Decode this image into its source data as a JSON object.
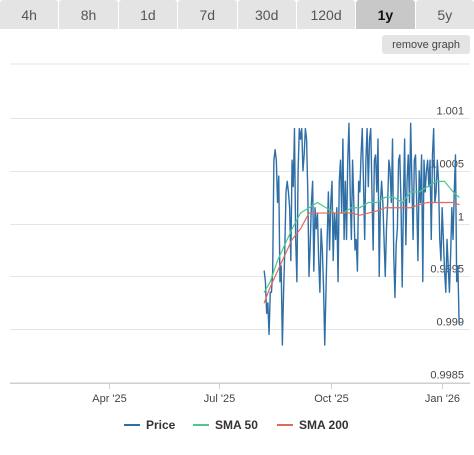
{
  "tabs": [
    {
      "label": "4h",
      "active": false
    },
    {
      "label": "8h",
      "active": false
    },
    {
      "label": "1d",
      "active": false
    },
    {
      "label": "7d",
      "active": false
    },
    {
      "label": "30d",
      "active": false
    },
    {
      "label": "120d",
      "active": false
    },
    {
      "label": "1y",
      "active": true
    },
    {
      "label": "5y",
      "active": false
    }
  ],
  "remove_graph_label": "remove graph",
  "chart_data": {
    "type": "line",
    "ylim": [
      0.9985,
      1.001
    ],
    "y_ticks": [
      {
        "value": 1.001,
        "label": "1.001"
      },
      {
        "value": 1.0005,
        "label": "1.0005"
      },
      {
        "value": 1.0,
        "label": "1"
      },
      {
        "value": 0.9995,
        "label": "0.9995"
      },
      {
        "value": 0.999,
        "label": "0.999"
      },
      {
        "value": 0.9985,
        "label": "0.9985"
      }
    ],
    "x_range": [
      "2025-01-09",
      "2026-01-24"
    ],
    "x_ticks": [
      {
        "date": "2025-04-01",
        "label": "Apr '25"
      },
      {
        "date": "2025-07-01",
        "label": "Jul '25"
      },
      {
        "date": "2025-10-01",
        "label": "Oct '25"
      },
      {
        "date": "2026-01-01",
        "label": "Jan '26"
      }
    ],
    "grid": true,
    "legend_position": "bottom",
    "series": [
      {
        "name": "Price",
        "color": "#2f6fa6",
        "points": [
          [
            "2025-08-07",
            0.99955
          ],
          [
            "2025-08-08",
            0.99945
          ],
          [
            "2025-08-09",
            0.99915
          ],
          [
            "2025-08-10",
            0.99925
          ],
          [
            "2025-08-11",
            0.99895
          ],
          [
            "2025-08-12",
            0.99935
          ],
          [
            "2025-08-13",
            0.99935
          ],
          [
            "2025-08-14",
            0.99955
          ],
          [
            "2025-08-15",
            1.0006
          ],
          [
            "2025-08-16",
            1.0007
          ],
          [
            "2025-08-17",
            1.0006
          ],
          [
            "2025-08-18",
            1.0002
          ],
          [
            "2025-08-19",
            1.00045
          ],
          [
            "2025-08-20",
            0.99945
          ],
          [
            "2025-08-21",
            0.9996
          ],
          [
            "2025-08-22",
            0.99885
          ],
          [
            "2025-08-23",
            0.99935
          ],
          [
            "2025-08-24",
            0.99975
          ],
          [
            "2025-08-25",
            1.0003
          ],
          [
            "2025-08-26",
            1.0004
          ],
          [
            "2025-08-27",
            1.0003
          ],
          [
            "2025-08-28",
            1.00015
          ],
          [
            "2025-08-29",
            0.99965
          ],
          [
            "2025-08-30",
            1.0006
          ],
          [
            "2025-08-31",
            1.00035
          ],
          [
            "2025-09-01",
            1.0009
          ],
          [
            "2025-09-02",
            0.99985
          ],
          [
            "2025-09-03",
            0.99945
          ],
          [
            "2025-09-04",
            1.0005
          ],
          [
            "2025-09-05",
            1.0009
          ],
          [
            "2025-09-06",
            1.0008
          ],
          [
            "2025-09-07",
            1.0009
          ],
          [
            "2025-09-08",
            1.0005
          ],
          [
            "2025-09-09",
            1.00065
          ],
          [
            "2025-09-10",
            1.0009
          ],
          [
            "2025-09-11",
            1.0008
          ],
          [
            "2025-09-12",
            1.0003
          ],
          [
            "2025-09-13",
            0.9995
          ],
          [
            "2025-09-14",
            0.9998
          ],
          [
            "2025-09-15",
            1.0002
          ],
          [
            "2025-09-16",
            1.0004
          ],
          [
            "2025-09-17",
            0.99955
          ],
          [
            "2025-09-18",
            1.00015
          ],
          [
            "2025-09-19",
            0.99995
          ],
          [
            "2025-09-20",
            1.0001
          ],
          [
            "2025-09-21",
            0.99965
          ],
          [
            "2025-09-22",
            0.99935
          ],
          [
            "2025-09-23",
            0.99995
          ],
          [
            "2025-09-24",
            0.99975
          ],
          [
            "2025-09-25",
            0.9994
          ],
          [
            "2025-09-26",
            0.99885
          ],
          [
            "2025-09-27",
            0.99935
          ],
          [
            "2025-09-28",
            0.99985
          ],
          [
            "2025-09-29",
            1.0003
          ],
          [
            "2025-09-30",
            0.99975
          ],
          [
            "2025-10-01",
            1.0002
          ],
          [
            "2025-10-02",
            1.0004
          ],
          [
            "2025-10-03",
            0.99965
          ],
          [
            "2025-10-04",
            1.0001
          ],
          [
            "2025-10-05",
            0.99985
          ],
          [
            "2025-10-06",
            1.00015
          ],
          [
            "2025-10-07",
            0.99945
          ],
          [
            "2025-10-08",
            1.0004
          ],
          [
            "2025-10-09",
            1.0006
          ],
          [
            "2025-10-10",
            1.0001
          ],
          [
            "2025-10-11",
            1.0008
          ],
          [
            "2025-10-12",
            0.99985
          ],
          [
            "2025-10-13",
            1.0004
          ],
          [
            "2025-10-14",
            0.99985
          ],
          [
            "2025-10-15",
            1.0006
          ],
          [
            "2025-10-16",
            1.00095
          ],
          [
            "2025-10-17",
            1.0003
          ],
          [
            "2025-10-18",
            0.99985
          ],
          [
            "2025-10-19",
            1.0006
          ],
          [
            "2025-10-20",
            1.0002
          ],
          [
            "2025-10-21",
            0.99975
          ],
          [
            "2025-10-22",
            0.99985
          ],
          [
            "2025-10-23",
            0.99955
          ],
          [
            "2025-10-24",
            1.0004
          ],
          [
            "2025-10-25",
            1.0003
          ],
          [
            "2025-10-26",
            1.00065
          ],
          [
            "2025-10-27",
            1.0009
          ],
          [
            "2025-10-28",
            1.0004
          ],
          [
            "2025-10-29",
            0.99985
          ],
          [
            "2025-10-30",
            1.0006
          ],
          [
            "2025-10-31",
            1.0009
          ],
          [
            "2025-11-01",
            1.00035
          ],
          [
            "2025-11-02",
            1.0008
          ],
          [
            "2025-11-03",
            1.0009
          ],
          [
            "2025-11-04",
            1.0003
          ],
          [
            "2025-11-05",
            0.99975
          ],
          [
            "2025-11-06",
            1.0006
          ],
          [
            "2025-11-07",
            1.00065
          ],
          [
            "2025-11-08",
            1.0003
          ],
          [
            "2025-11-09",
            1.0008
          ],
          [
            "2025-11-10",
            0.9995
          ],
          [
            "2025-11-11",
            1.0002
          ],
          [
            "2025-11-12",
            1.0004
          ],
          [
            "2025-11-13",
            1.0002
          ],
          [
            "2025-11-14",
            0.99985
          ],
          [
            "2025-11-15",
            0.9995
          ],
          [
            "2025-11-16",
            0.99995
          ],
          [
            "2025-11-17",
            1.0002
          ],
          [
            "2025-11-18",
            1.0006
          ],
          [
            "2025-11-19",
            1.0005
          ],
          [
            "2025-11-20",
            1.0002
          ],
          [
            "2025-11-21",
            1.0008
          ],
          [
            "2025-11-22",
            0.9997
          ],
          [
            "2025-11-23",
            0.9993
          ],
          [
            "2025-11-24",
            0.9998
          ],
          [
            "2025-11-25",
            0.99995
          ],
          [
            "2025-11-26",
            1.0006
          ],
          [
            "2025-11-27",
            1.00065
          ],
          [
            "2025-11-28",
            1.0002
          ],
          [
            "2025-11-29",
            0.9994
          ],
          [
            "2025-11-30",
            1.0002
          ],
          [
            "2025-12-01",
            1.0008
          ],
          [
            "2025-12-02",
            0.9998
          ],
          [
            "2025-12-03",
            1.0004
          ],
          [
            "2025-12-04",
            1.00065
          ],
          [
            "2025-12-05",
            1.0002
          ],
          [
            "2025-12-06",
            1.00095
          ],
          [
            "2025-12-07",
            1.0004
          ],
          [
            "2025-12-08",
            0.99985
          ],
          [
            "2025-12-09",
            1.0006
          ],
          [
            "2025-12-10",
            1.00065
          ],
          [
            "2025-12-11",
            1.0002
          ],
          [
            "2025-12-12",
            0.99965
          ],
          [
            "2025-12-13",
            1.0005
          ],
          [
            "2025-12-14",
            1.0002
          ],
          [
            "2025-12-15",
            1.00065
          ],
          [
            "2025-12-16",
            0.99945
          ],
          [
            "2025-12-17",
            1.0006
          ],
          [
            "2025-12-18",
            1.0003
          ],
          [
            "2025-12-19",
            1.0005
          ],
          [
            "2025-12-20",
            1.0006
          ],
          [
            "2025-12-21",
            1.00035
          ],
          [
            "2025-12-22",
            1.0006
          ],
          [
            "2025-12-23",
            0.99985
          ],
          [
            "2025-12-24",
            1.00065
          ],
          [
            "2025-12-25",
            1.0009
          ],
          [
            "2025-12-26",
            1.0002
          ],
          [
            "2025-12-27",
            1.0003
          ],
          [
            "2025-12-28",
            1.0006
          ],
          [
            "2025-12-29",
            1.0004
          ],
          [
            "2025-12-30",
            0.99985
          ],
          [
            "2025-12-31",
            0.99965
          ],
          [
            "2026-01-01",
            1.00015
          ],
          [
            "2026-01-02",
            0.99985
          ],
          [
            "2026-01-03",
            0.99955
          ],
          [
            "2026-01-04",
            0.99935
          ],
          [
            "2026-01-05",
            0.99985
          ],
          [
            "2026-01-06",
            0.9996
          ],
          [
            "2026-01-07",
            0.99935
          ],
          [
            "2026-01-08",
            0.9997
          ],
          [
            "2026-01-09",
            1.00015
          ],
          [
            "2026-01-10",
            0.99985
          ],
          [
            "2026-01-11",
            1.0003
          ],
          [
            "2026-01-12",
            1.00065
          ],
          [
            "2026-01-13",
            0.99945
          ],
          [
            "2026-01-14",
            0.9996
          ],
          [
            "2026-01-15",
            0.99905
          ]
        ]
      },
      {
        "name": "SMA 50",
        "color": "#4cc98a",
        "points": [
          [
            "2025-08-07",
            0.99935
          ],
          [
            "2025-08-12",
            0.99945
          ],
          [
            "2025-08-18",
            0.99965
          ],
          [
            "2025-08-24",
            0.9998
          ],
          [
            "2025-08-30",
            0.99995
          ],
          [
            "2025-09-06",
            1.0001
          ],
          [
            "2025-09-13",
            1.00015
          ],
          [
            "2025-09-20",
            1.0002
          ],
          [
            "2025-09-27",
            1.00015
          ],
          [
            "2025-10-04",
            1.0001
          ],
          [
            "2025-10-11",
            1.0001
          ],
          [
            "2025-10-18",
            1.00015
          ],
          [
            "2025-10-25",
            1.00015
          ],
          [
            "2025-11-01",
            1.0002
          ],
          [
            "2025-11-08",
            1.0002
          ],
          [
            "2025-11-15",
            1.00025
          ],
          [
            "2025-11-22",
            1.00025
          ],
          [
            "2025-11-29",
            1.0002
          ],
          [
            "2025-12-06",
            1.0003
          ],
          [
            "2025-12-13",
            1.0003
          ],
          [
            "2025-12-20",
            1.00035
          ],
          [
            "2025-12-27",
            1.0004
          ],
          [
            "2026-01-03",
            1.0004
          ],
          [
            "2026-01-10",
            1.0003
          ],
          [
            "2026-01-15",
            1.00025
          ]
        ]
      },
      {
        "name": "SMA 200",
        "color": "#e06a5a",
        "points": [
          [
            "2025-08-07",
            0.99925
          ],
          [
            "2025-08-12",
            0.9994
          ],
          [
            "2025-08-18",
            0.99955
          ],
          [
            "2025-08-24",
            0.9997
          ],
          [
            "2025-08-30",
            0.99985
          ],
          [
            "2025-09-06",
            0.99995
          ],
          [
            "2025-09-13",
            1.0001
          ],
          [
            "2025-09-20",
            1.0001
          ],
          [
            "2025-09-27",
            1.0001
          ],
          [
            "2025-10-04",
            1.0001
          ],
          [
            "2025-10-11",
            1.0001
          ],
          [
            "2025-10-18",
            1.0001
          ],
          [
            "2025-10-25",
            1.00008
          ],
          [
            "2025-11-01",
            1.0001
          ],
          [
            "2025-11-08",
            1.00012
          ],
          [
            "2025-11-15",
            1.00015
          ],
          [
            "2025-11-22",
            1.00015
          ],
          [
            "2025-11-29",
            1.00015
          ],
          [
            "2025-12-06",
            1.00015
          ],
          [
            "2025-12-13",
            1.00018
          ],
          [
            "2025-12-20",
            1.0002
          ],
          [
            "2025-12-27",
            1.0002
          ],
          [
            "2026-01-03",
            1.0002
          ],
          [
            "2026-01-10",
            1.0002
          ],
          [
            "2026-01-15",
            1.00018
          ]
        ]
      }
    ]
  }
}
